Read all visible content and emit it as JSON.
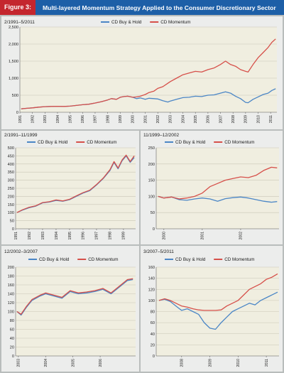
{
  "figure": {
    "label": "Figure 3:",
    "title": "Multi-layered Momentum Strategy Applied to the Consumer Discretionary Sector"
  },
  "colors": {
    "buy_hold": "#4b86c6",
    "momentum": "#d6504a",
    "header_bg": "#1d5fa7",
    "label_bg": "#c4262e",
    "plot_bg": "#f0eee0",
    "panel_bg": "#ecedec"
  },
  "chart_data": [
    {
      "type": "line",
      "period": "2/1991–5/2011",
      "ylim": [
        0,
        2500
      ],
      "yticks": [
        0,
        500,
        1000,
        1500,
        2000,
        2500
      ],
      "ytick_labels": [
        "0",
        "500",
        "1,000",
        "1,500",
        "2,000",
        "2,500"
      ],
      "xlim": [
        1991,
        2011.5
      ],
      "xtick_labels": [
        "1991",
        "1992",
        "1993",
        "1994",
        "1995",
        "1996",
        "1997",
        "1998",
        "1999",
        "2000",
        "2001",
        "2002",
        "2003",
        "2004",
        "2005",
        "2006",
        "2007",
        "2008",
        "2009",
        "2010",
        "2011"
      ],
      "grid": true,
      "legend": "top",
      "series": [
        {
          "name": "CD Buy & Hold",
          "x": [
            1991.1,
            1991.5,
            1992,
            1992.5,
            1993,
            1993.5,
            1994,
            1994.5,
            1995,
            1995.5,
            1996,
            1996.5,
            1997,
            1997.5,
            1998,
            1998.3,
            1998.7,
            1999,
            1999.3,
            1999.6,
            2000,
            2000.3,
            2000.6,
            2001,
            2001.3,
            2001.7,
            2002,
            2002.4,
            2002.8,
            2003,
            2003.5,
            2004,
            2004.5,
            2005,
            2005.5,
            2006,
            2006.5,
            2007,
            2007.4,
            2007.8,
            2008.2,
            2008.6,
            2009,
            2009.2,
            2009.6,
            2010,
            2010.4,
            2010.8,
            2011.1,
            2011.4
          ],
          "y": [
            100,
            115,
            130,
            150,
            165,
            170,
            175,
            170,
            180,
            200,
            220,
            235,
            270,
            310,
            360,
            400,
            380,
            440,
            460,
            470,
            440,
            400,
            420,
            380,
            410,
            400,
            390,
            340,
            300,
            330,
            380,
            430,
            440,
            470,
            460,
            500,
            510,
            560,
            600,
            560,
            470,
            400,
            290,
            280,
            380,
            450,
            520,
            560,
            640,
            690
          ]
        },
        {
          "name": "CD Momentum",
          "x": [
            1991.1,
            1991.5,
            1992,
            1992.5,
            1993,
            1993.5,
            1994,
            1994.5,
            1995,
            1995.5,
            1996,
            1996.5,
            1997,
            1997.5,
            1998,
            1998.3,
            1998.7,
            1999,
            1999.3,
            1999.6,
            2000,
            2000.3,
            2000.6,
            2001,
            2001.3,
            2001.7,
            2002,
            2002.4,
            2002.8,
            2003,
            2003.5,
            2004,
            2004.5,
            2005,
            2005.5,
            2006,
            2006.5,
            2007,
            2007.4,
            2007.8,
            2008.2,
            2008.6,
            2009,
            2009.2,
            2009.6,
            2010,
            2010.4,
            2010.8,
            2011.1,
            2011.4
          ],
          "y": [
            100,
            115,
            130,
            150,
            165,
            170,
            175,
            170,
            180,
            200,
            220,
            235,
            270,
            310,
            360,
            400,
            380,
            440,
            460,
            470,
            440,
            450,
            470,
            520,
            580,
            620,
            700,
            750,
            850,
            900,
            1000,
            1100,
            1150,
            1200,
            1180,
            1250,
            1300,
            1400,
            1500,
            1400,
            1350,
            1250,
            1200,
            1180,
            1400,
            1600,
            1750,
            1900,
            2050,
            2150
          ]
        }
      ]
    },
    {
      "type": "line",
      "period": "2/1991–11/1999",
      "ylim": [
        0,
        500
      ],
      "yticks": [
        0,
        50,
        100,
        150,
        200,
        250,
        300,
        350,
        400,
        450,
        500
      ],
      "xlim": [
        1991,
        1999.9
      ],
      "xtick_labels": [
        "1991",
        "1992",
        "1993",
        "1994",
        "1995",
        "1996",
        "1997",
        "1998",
        "1999"
      ],
      "grid": true,
      "legend": "top",
      "series": [
        {
          "name": "CD Buy & Hold",
          "x": [
            1991.1,
            1991.5,
            1992,
            1992.5,
            1993,
            1993.5,
            1994,
            1994.5,
            1995,
            1995.5,
            1996,
            1996.5,
            1997,
            1997.5,
            1998,
            1998.3,
            1998.6,
            1998.9,
            1999.2,
            1999.5,
            1999.8
          ],
          "y": [
            100,
            115,
            130,
            140,
            160,
            165,
            175,
            170,
            180,
            200,
            220,
            235,
            270,
            310,
            360,
            410,
            370,
            420,
            450,
            410,
            440
          ]
        },
        {
          "name": "CD Momentum",
          "x": [
            1991.1,
            1991.5,
            1992,
            1992.5,
            1993,
            1993.5,
            1994,
            1994.5,
            1995,
            1995.5,
            1996,
            1996.5,
            1997,
            1997.5,
            1998,
            1998.3,
            1998.6,
            1998.9,
            1999.2,
            1999.5,
            1999.8
          ],
          "y": [
            100,
            117,
            133,
            142,
            162,
            167,
            178,
            172,
            182,
            203,
            223,
            238,
            273,
            313,
            365,
            415,
            375,
            425,
            455,
            415,
            450
          ]
        }
      ]
    },
    {
      "type": "line",
      "period": "11/1999–12/2002",
      "ylim": [
        0,
        250
      ],
      "yticks": [
        0,
        50,
        100,
        150,
        200,
        250
      ],
      "xlim": [
        1999.8,
        2003.0
      ],
      "xtick_labels": [
        "1999",
        "2000",
        "2001",
        "2002"
      ],
      "grid": true,
      "legend": "top",
      "series": [
        {
          "name": "CD Buy & Hold",
          "x": [
            1999.85,
            2000.0,
            2000.2,
            2000.4,
            2000.6,
            2000.8,
            2001.0,
            2001.2,
            2001.4,
            2001.6,
            2001.8,
            2002.0,
            2002.2,
            2002.4,
            2002.6,
            2002.8,
            2002.95
          ],
          "y": [
            100,
            95,
            98,
            90,
            88,
            92,
            95,
            92,
            85,
            93,
            96,
            98,
            95,
            90,
            85,
            82,
            84
          ]
        },
        {
          "name": "CD Momentum",
          "x": [
            1999.85,
            2000.0,
            2000.2,
            2000.4,
            2000.6,
            2000.8,
            2001.0,
            2001.2,
            2001.4,
            2001.6,
            2001.8,
            2002.0,
            2002.2,
            2002.4,
            2002.6,
            2002.8,
            2002.95
          ],
          "y": [
            100,
            95,
            98,
            92,
            95,
            100,
            110,
            130,
            140,
            150,
            155,
            160,
            158,
            165,
            180,
            190,
            188
          ]
        }
      ]
    },
    {
      "type": "line",
      "period": "12/2002–3/2007",
      "ylim": [
        0,
        200
      ],
      "yticks": [
        0,
        20,
        40,
        60,
        80,
        100,
        120,
        140,
        160,
        180,
        200
      ],
      "xlim": [
        2002.9,
        2007.3
      ],
      "xtick_labels": [
        "2002",
        "2003",
        "2004",
        "2005",
        "2006"
      ],
      "grid": true,
      "legend": "top",
      "series": [
        {
          "name": "CD Buy & Hold",
          "x": [
            2002.95,
            2003.1,
            2003.3,
            2003.5,
            2003.8,
            2004.0,
            2004.3,
            2004.6,
            2004.9,
            2005.2,
            2005.5,
            2005.8,
            2006.1,
            2006.4,
            2006.7,
            2007.0,
            2007.2
          ],
          "y": [
            100,
            92,
            110,
            125,
            135,
            140,
            135,
            130,
            145,
            140,
            142,
            145,
            150,
            140,
            155,
            170,
            172
          ]
        },
        {
          "name": "CD Momentum",
          "x": [
            2002.95,
            2003.1,
            2003.3,
            2003.5,
            2003.8,
            2004.0,
            2004.3,
            2004.6,
            2004.9,
            2005.2,
            2005.5,
            2005.8,
            2006.1,
            2006.4,
            2006.7,
            2007.0,
            2007.2
          ],
          "y": [
            100,
            94,
            112,
            127,
            137,
            142,
            137,
            132,
            147,
            142,
            144,
            147,
            152,
            142,
            157,
            172,
            174
          ]
        }
      ]
    },
    {
      "type": "line",
      "period": "3/2007–5/2011",
      "ylim": [
        0,
        160
      ],
      "yticks": [
        0,
        20,
        40,
        60,
        80,
        100,
        120,
        140,
        160
      ],
      "xlim": [
        2007.1,
        2011.45
      ],
      "xtick_labels": [
        "2007",
        "2008",
        "2009",
        "2010",
        "2011"
      ],
      "grid": true,
      "legend": "top",
      "series": [
        {
          "name": "CD Buy & Hold",
          "x": [
            2007.2,
            2007.4,
            2007.6,
            2007.8,
            2008.0,
            2008.2,
            2008.4,
            2008.6,
            2008.8,
            2009.0,
            2009.2,
            2009.4,
            2009.6,
            2009.8,
            2010.0,
            2010.2,
            2010.4,
            2010.6,
            2010.8,
            2011.0,
            2011.2,
            2011.4
          ],
          "y": [
            100,
            102,
            98,
            90,
            82,
            85,
            80,
            75,
            60,
            50,
            48,
            60,
            70,
            80,
            85,
            90,
            95,
            92,
            100,
            105,
            110,
            115
          ]
        },
        {
          "name": "CD Momentum",
          "x": [
            2007.2,
            2007.4,
            2007.6,
            2007.8,
            2008.0,
            2008.2,
            2008.4,
            2008.6,
            2008.8,
            2009.0,
            2009.2,
            2009.4,
            2009.6,
            2009.8,
            2010.0,
            2010.2,
            2010.4,
            2010.6,
            2010.8,
            2011.0,
            2011.2,
            2011.4
          ],
          "y": [
            100,
            103,
            100,
            95,
            90,
            88,
            85,
            83,
            82,
            82,
            82,
            83,
            90,
            95,
            100,
            110,
            120,
            125,
            130,
            138,
            142,
            148
          ]
        }
      ]
    }
  ]
}
